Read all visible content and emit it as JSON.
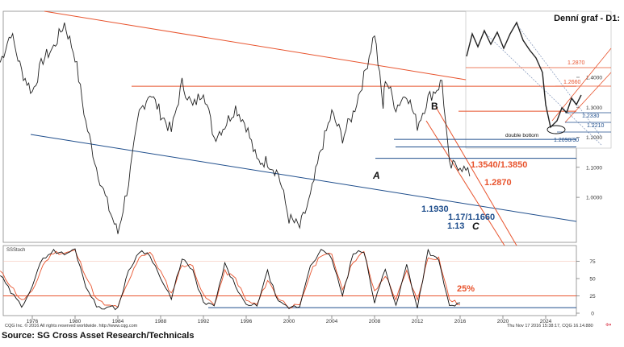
{
  "inset_title": "Denní graf - D1:",
  "footer": {
    "source": "Source: SG Cross Asset Research/Technicals",
    "copyright": "CQG Inc. © 2016 All rights reserved worldwide. http://www.cqg.com",
    "timestamp": "Thu Nov 17 2016 15:38:17, CQG 16.14.880",
    "arrow": "⇦"
  },
  "colors": {
    "price": "#222222",
    "resistance": "#e8542e",
    "support": "#1f4e8c",
    "stoch_k": "#111111",
    "stoch_d": "#e8542e"
  },
  "chart_data": [
    {
      "type": "line",
      "title": "",
      "ylabel": "",
      "ylim": [
        0.85,
        1.62
      ],
      "x_ticks": [
        "1976",
        "1980",
        "1984",
        "1988",
        "1992",
        "1996",
        "2000",
        "2004",
        "2008",
        "2012",
        "2016",
        "2020",
        "2024"
      ],
      "y_ticks": [
        1.0,
        1.1,
        1.2,
        1.3,
        1.4
      ],
      "y_tick_labels": [
        "1.0000",
        "1.1000",
        "1.2000",
        "1.3000",
        "1.4000"
      ],
      "series": [
        {
          "kind": "price",
          "x": [
            1973,
            1974,
            1975,
            1976,
            1977,
            1978,
            1979,
            1980,
            1981,
            1982,
            1983,
            1984,
            1985,
            1986,
            1987,
            1988,
            1989,
            1990,
            1991,
            1992,
            1993,
            1994,
            1995,
            1996,
            1997,
            1998,
            1999,
            2000,
            2001,
            2002,
            2003,
            2004,
            2005,
            2006,
            2007,
            2008,
            2008.8,
            2009,
            2010,
            2011,
            2012,
            2013,
            2014,
            2014.3,
            2015,
            2016,
            2016.9
          ],
          "values": [
            1.45,
            1.55,
            1.42,
            1.35,
            1.46,
            1.5,
            1.58,
            1.47,
            1.25,
            1.1,
            0.98,
            0.88,
            1.05,
            1.28,
            1.35,
            1.28,
            1.22,
            1.38,
            1.3,
            1.36,
            1.2,
            1.24,
            1.3,
            1.24,
            1.12,
            1.12,
            1.08,
            0.93,
            0.9,
            1.0,
            1.16,
            1.28,
            1.2,
            1.28,
            1.4,
            1.55,
            1.3,
            1.4,
            1.3,
            1.35,
            1.24,
            1.33,
            1.37,
            1.39,
            1.1,
            1.11,
            1.07
          ]
        }
      ],
      "levels": [
        {
          "label": "1.3540/1.3850",
          "value": 1.37,
          "color": "#e8542e"
        },
        {
          "label": "1.2870",
          "value": 1.287,
          "color": "#e8542e"
        },
        {
          "label": "1.1930",
          "value": 1.193,
          "color": "#1f4e8c"
        },
        {
          "label": "1.17/1.1660",
          "value": 1.168,
          "color": "#1f4e8c"
        },
        {
          "label": "1.13",
          "value": 1.13,
          "color": "#1f4e8c"
        }
      ],
      "annotations": [
        "A",
        "B",
        "C"
      ]
    },
    {
      "type": "line",
      "title": "Denní graf - D1:",
      "levels": [
        {
          "label": "1.2870",
          "value": 1.287,
          "color": "#e8542e"
        },
        {
          "label": "1.2660",
          "value": 1.266,
          "color": "#e8542e"
        },
        {
          "label": "1.2330",
          "value": 1.233,
          "color": "#1f4e8c"
        },
        {
          "label": "1.2210",
          "value": 1.221,
          "color": "#1f4e8c"
        },
        {
          "label": "1.2090/30",
          "value": 1.209,
          "color": "#1f4e8c"
        }
      ],
      "annotations": [
        "double bottom"
      ]
    },
    {
      "type": "line",
      "title": "SSStoch",
      "ylim": [
        0,
        100
      ],
      "y_ticks": [
        0,
        25,
        50,
        75
      ],
      "series": [
        {
          "name": "%K",
          "x": [
            1973,
            1974,
            1975,
            1976,
            1977,
            1978,
            1979,
            1980,
            1981,
            1982,
            1983,
            1984,
            1985,
            1986,
            1987,
            1988,
            1989,
            1990,
            1991,
            1992,
            1993,
            1994,
            1995,
            1996,
            1997,
            1998,
            1999,
            2000,
            2001,
            2002,
            2003,
            2004,
            2005,
            2006,
            2007,
            2008,
            2009,
            2010,
            2011,
            2012,
            2013,
            2014,
            2015,
            2016
          ],
          "values": [
            55,
            30,
            10,
            40,
            80,
            90,
            85,
            92,
            40,
            10,
            8,
            8,
            60,
            90,
            85,
            50,
            20,
            80,
            60,
            15,
            10,
            70,
            40,
            10,
            12,
            60,
            15,
            8,
            10,
            70,
            90,
            80,
            25,
            85,
            90,
            15,
            65,
            10,
            70,
            8,
            90,
            75,
            10,
            15
          ]
        },
        {
          "name": "%D",
          "x": [
            1973,
            1974,
            1975,
            1976,
            1977,
            1978,
            1979,
            1980,
            1981,
            1982,
            1983,
            1984,
            1985,
            1986,
            1987,
            1988,
            1989,
            1990,
            1991,
            1992,
            1993,
            1994,
            1995,
            1996,
            1997,
            1998,
            1999,
            2000,
            2001,
            2002,
            2003,
            2004,
            2005,
            2006,
            2007,
            2008,
            2009,
            2010,
            2011,
            2012,
            2013,
            2014,
            2015,
            2016
          ],
          "values": [
            60,
            40,
            18,
            30,
            70,
            88,
            87,
            90,
            55,
            20,
            10,
            10,
            45,
            82,
            88,
            60,
            28,
            70,
            68,
            25,
            12,
            60,
            50,
            18,
            12,
            48,
            22,
            10,
            10,
            58,
            85,
            84,
            35,
            75,
            88,
            30,
            55,
            20,
            60,
            18,
            80,
            80,
            20,
            12
          ]
        }
      ],
      "levels": [
        {
          "label": "25%",
          "value": 25,
          "color": "#e8542e"
        },
        {
          "label": "",
          "value": 8,
          "color": "#1f4e8c"
        }
      ]
    }
  ]
}
